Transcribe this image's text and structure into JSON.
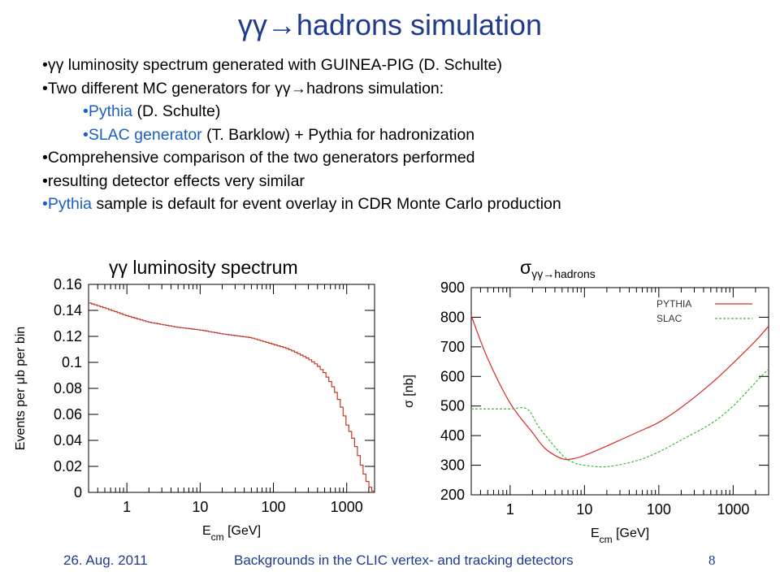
{
  "slide": {
    "title": "γγ→hadrons simulation",
    "bullets": [
      {
        "parts": [
          {
            "text": "•γγ luminosity spectrum generated with GUINEA-PIG (D. Schulte)",
            "blue": false
          }
        ],
        "indent": false
      },
      {
        "parts": [
          {
            "text": "•Two different MC generators for γγ→hadrons simulation:",
            "blue": false
          }
        ],
        "indent": false
      },
      {
        "parts": [
          {
            "text": "•Pythia",
            "blue": true
          },
          {
            "text": " (D. Schulte)",
            "blue": false
          }
        ],
        "indent": true
      },
      {
        "parts": [
          {
            "text": "•SLAC generator",
            "blue": true
          },
          {
            "text": " (T. Barklow) + Pythia for hadronization",
            "blue": false
          }
        ],
        "indent": true
      },
      {
        "parts": [
          {
            "text": "•Comprehensive comparison of the two generators performed",
            "blue": false
          }
        ],
        "indent": false
      },
      {
        "parts": [
          {
            "text": "•resulting detector effects very similar",
            "blue": false
          }
        ],
        "indent": false
      },
      {
        "parts": [
          {
            "text": "•Pythia",
            "blue": true
          },
          {
            "text": " sample is default for event overlay in CDR Monte Carlo production",
            "blue": false
          }
        ],
        "indent": false
      }
    ],
    "left_plot_title": "γγ luminosity spectrum",
    "right_plot_title_main": "σ",
    "right_plot_title_sub": "γγ→hadrons",
    "footer_date": "26. Aug. 2011",
    "footer_center": "Backgrounds in the CLIC vertex- and tracking detectors",
    "page_number": "8"
  },
  "chart_data": [
    {
      "type": "line",
      "style": "histogram",
      "xscale": "log",
      "xlim": [
        0.3,
        2400
      ],
      "ylim": [
        0,
        0.16
      ],
      "xticks": [
        1,
        10,
        100,
        1000
      ],
      "xtick_labels": [
        "1",
        "10",
        "100",
        "1000"
      ],
      "yticks": [
        0,
        0.02,
        0.04,
        0.06,
        0.08,
        0.1,
        0.12,
        0.14,
        0.16
      ],
      "ytick_labels": [
        "0",
        "0.02",
        "0.04",
        "0.06",
        "0.08",
        "0.1",
        "0.12",
        "0.14",
        "0.16"
      ],
      "xlabel": "E_cm [GeV]",
      "ylabel": "Events per μb per bin",
      "color": "#c0392b",
      "series": [
        {
          "x": [
            0.3,
            0.5,
            1,
            2,
            5,
            10,
            20,
            50,
            100,
            150,
            200,
            300,
            400,
            500,
            600,
            700,
            800,
            900,
            1000,
            1200,
            1400,
            1600,
            1800,
            2000,
            2200,
            2400
          ],
          "y": [
            0.146,
            0.142,
            0.136,
            0.131,
            0.127,
            0.125,
            0.122,
            0.119,
            0.114,
            0.111,
            0.108,
            0.103,
            0.098,
            0.092,
            0.085,
            0.078,
            0.07,
            0.062,
            0.053,
            0.043,
            0.032,
            0.021,
            0.012,
            0.006,
            0.002,
            0.0
          ]
        }
      ]
    },
    {
      "type": "line",
      "xscale": "log",
      "xlim": [
        0.3,
        3000
      ],
      "ylim": [
        200,
        900
      ],
      "xticks": [
        1,
        10,
        100,
        1000
      ],
      "xtick_labels": [
        "1",
        "10",
        "100",
        "1000"
      ],
      "yticks": [
        200,
        300,
        400,
        500,
        600,
        700,
        800,
        900
      ],
      "ytick_labels": [
        "200",
        "300",
        "400",
        "500",
        "600",
        "700",
        "800",
        "900"
      ],
      "xlabel": "E_cm [GeV]",
      "ylabel": "σ [nb]",
      "legend": "top-right",
      "series": [
        {
          "name": "PYTHIA",
          "color": "#d42a2a",
          "x": [
            0.3,
            0.5,
            1,
            2,
            3,
            5,
            7,
            10,
            20,
            50,
            100,
            200,
            500,
            1000,
            2000,
            3000
          ],
          "y": [
            805,
            660,
            510,
            410,
            355,
            322,
            322,
            333,
            365,
            410,
            445,
            495,
            575,
            645,
            720,
            770
          ]
        },
        {
          "name": "SLAC",
          "color": "#3dbb3d",
          "x": [
            0.3,
            0.5,
            1,
            1.7,
            2.5,
            5,
            7,
            10,
            20,
            50,
            100,
            200,
            500,
            1000,
            2000,
            3000
          ],
          "y": [
            490,
            490,
            490,
            490,
            425,
            335,
            310,
            300,
            295,
            315,
            345,
            385,
            440,
            500,
            580,
            625
          ]
        }
      ]
    }
  ]
}
